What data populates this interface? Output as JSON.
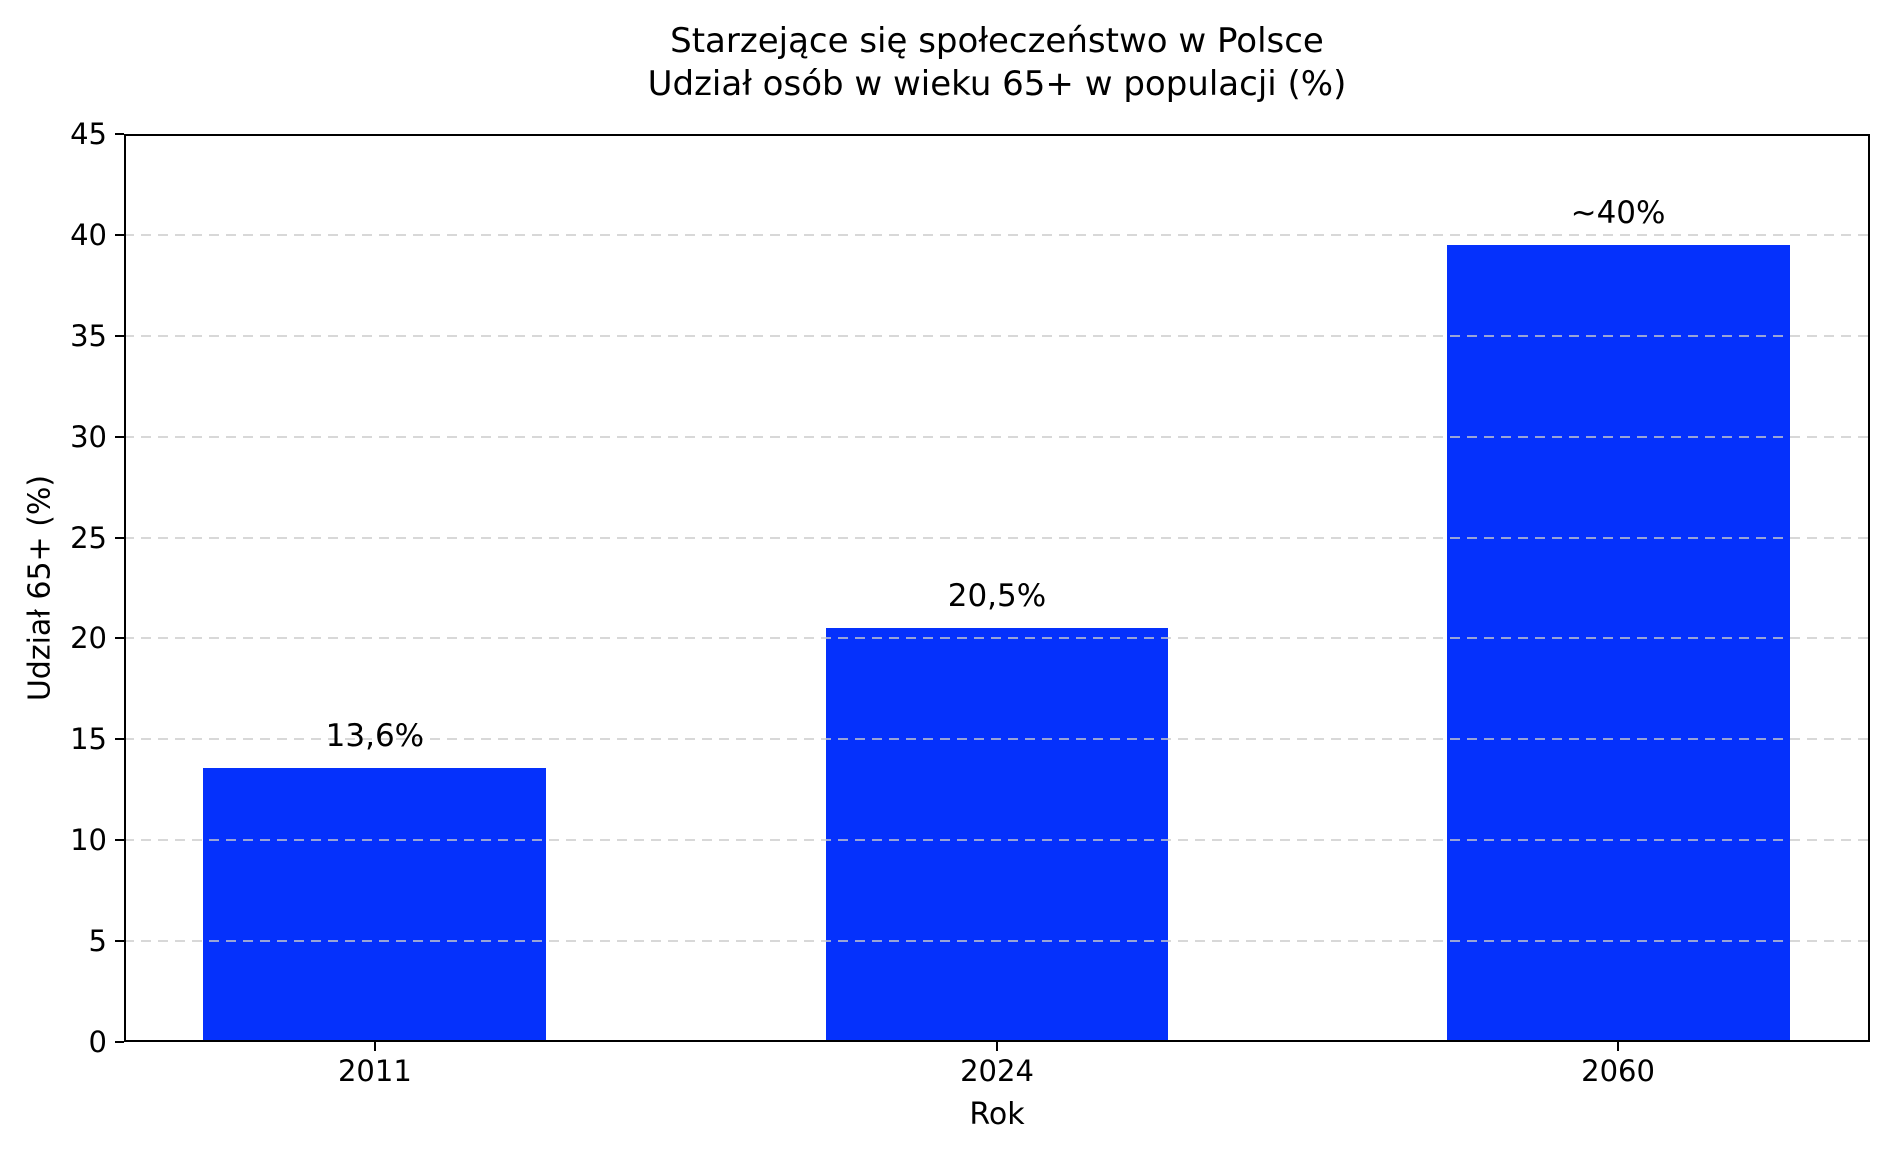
{
  "chart_data": {
    "type": "bar",
    "title": "Starzejące się społeczeństwo w Polsce",
    "subtitle": "Udział osób w wieku 65+ w populacji (%)",
    "xlabel": "Rok",
    "ylabel": "Udział 65+ (%)",
    "categories": [
      "2011",
      "2024",
      "2060"
    ],
    "values": [
      13.6,
      20.5,
      39.5
    ],
    "bar_labels": [
      "13,6%",
      "20,5%",
      "~40%"
    ],
    "ylim": [
      0,
      45
    ],
    "yticks": [
      0,
      5,
      10,
      15,
      20,
      25,
      30,
      35,
      40,
      45
    ],
    "bar_color": "#0531fc",
    "grid": "horizontal dashed gridlines, light gray, drawn above bars",
    "legend": "none",
    "background_color": "#ffffff",
    "axis_color": "#000000"
  }
}
